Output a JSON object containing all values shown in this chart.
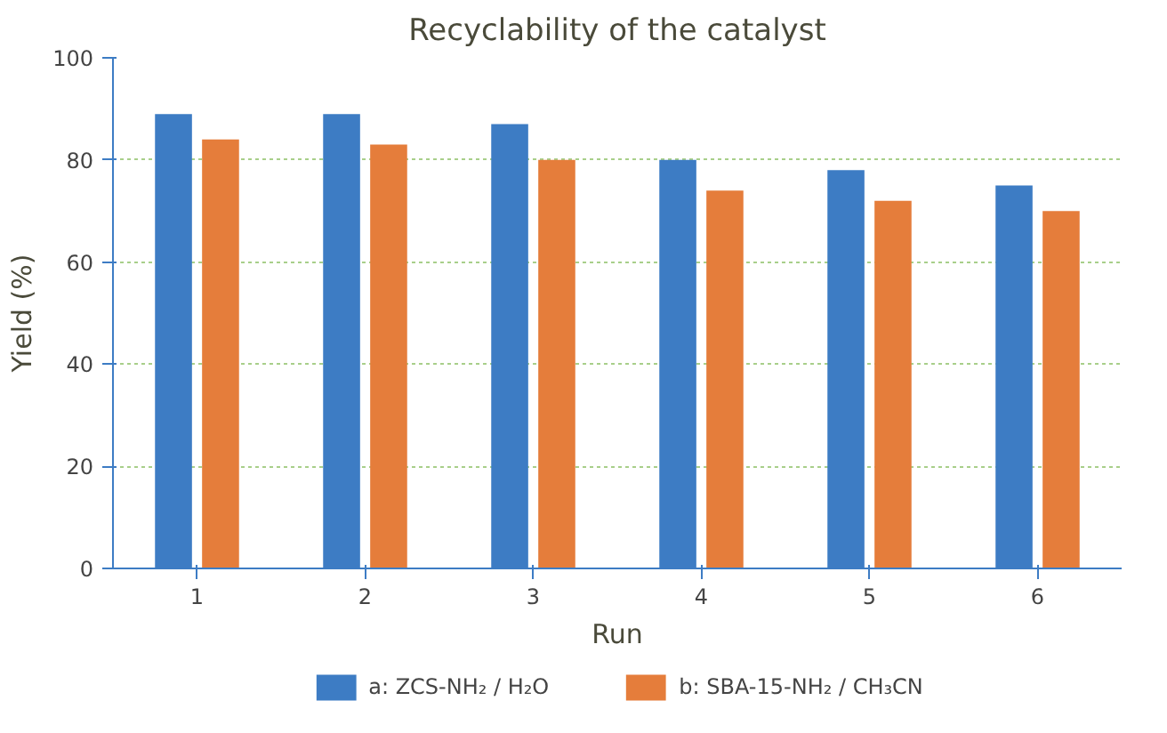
{
  "chart_data": {
    "type": "bar",
    "title": "Recyclability of the catalyst",
    "xlabel": "Run",
    "ylabel": "Yield (%)",
    "categories": [
      "1",
      "2",
      "3",
      "4",
      "5",
      "6"
    ],
    "series": [
      {
        "name": "a: ZCS-NH₂ / H₂O",
        "color": "#3d7cc4",
        "values": [
          89,
          89,
          87,
          80,
          78,
          75
        ]
      },
      {
        "name": "b: SBA-15-NH₂ / CH₃CN",
        "color": "#e57d3b",
        "values": [
          84,
          83,
          80,
          74,
          72,
          70
        ]
      }
    ],
    "ylim": [
      0,
      100
    ],
    "yticks": [
      0,
      20,
      40,
      60,
      80,
      100
    ],
    "grid": "y",
    "legend": "bottom"
  }
}
